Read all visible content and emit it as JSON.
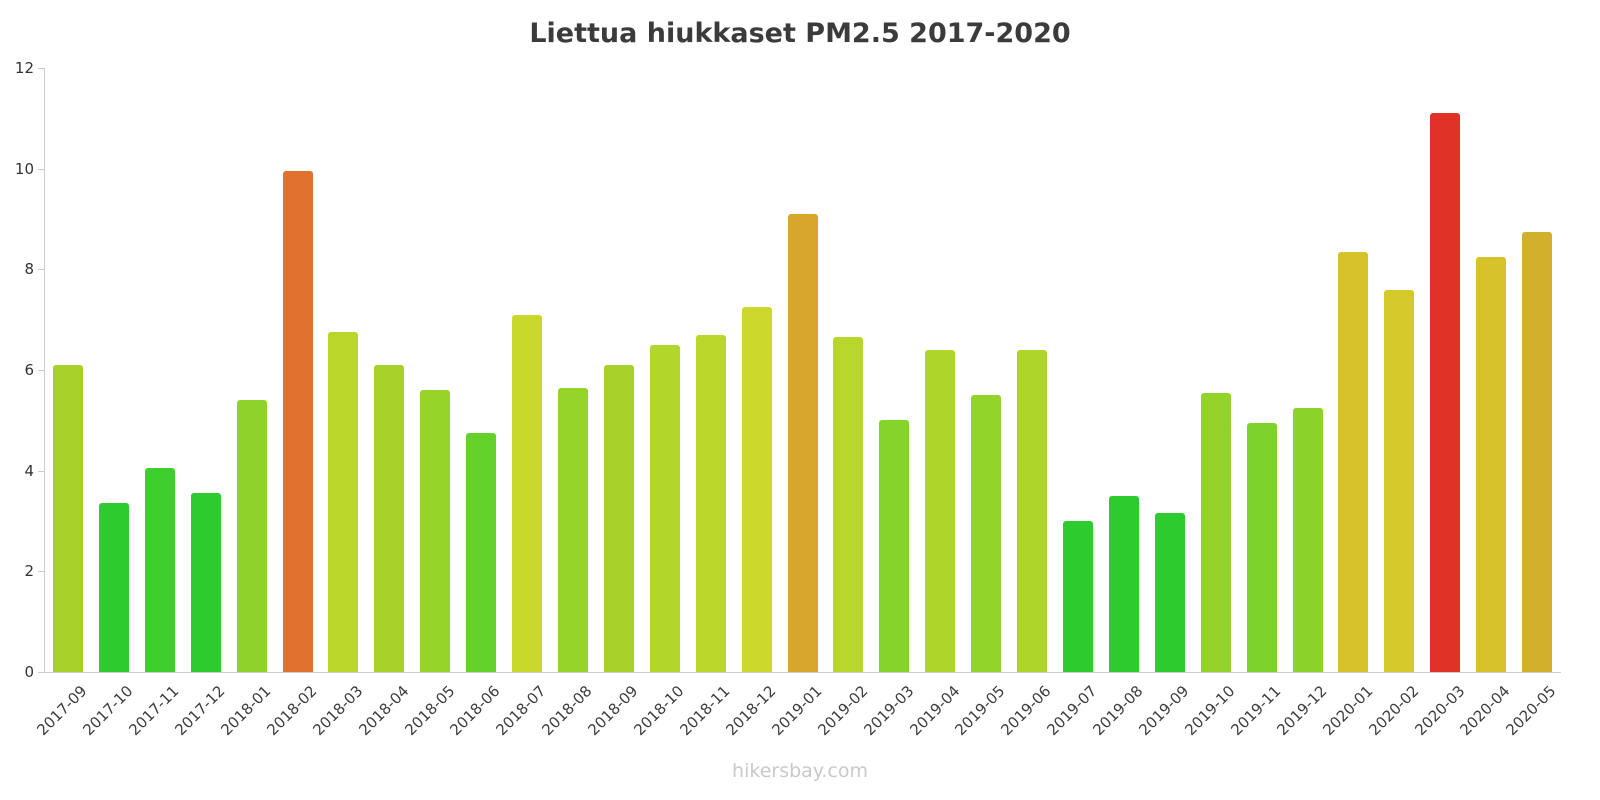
{
  "chart_data": {
    "type": "bar",
    "title": "Liettua hiukkaset PM2.5 2017-2020",
    "xlabel": "",
    "ylabel": "",
    "ylim": [
      0,
      12
    ],
    "yticks": [
      0,
      2,
      4,
      6,
      8,
      10,
      12
    ],
    "grid": false,
    "legend": false,
    "categories": [
      "2017-09",
      "2017-10",
      "2017-11",
      "2017-12",
      "2018-01",
      "2018-02",
      "2018-03",
      "2018-04",
      "2018-05",
      "2018-06",
      "2018-07",
      "2018-08",
      "2018-09",
      "2018-10",
      "2018-11",
      "2018-12",
      "2019-01",
      "2019-02",
      "2019-03",
      "2019-04",
      "2019-05",
      "2019-06",
      "2019-07",
      "2019-08",
      "2019-09",
      "2019-10",
      "2019-11",
      "2019-12",
      "2020-01",
      "2020-02",
      "2020-03",
      "2020-04",
      "2020-05"
    ],
    "values": [
      6.1,
      3.35,
      4.05,
      3.55,
      5.4,
      9.95,
      6.75,
      6.1,
      5.6,
      4.75,
      7.1,
      5.65,
      6.1,
      6.5,
      6.7,
      7.25,
      9.1,
      6.65,
      5.0,
      6.4,
      5.5,
      6.4,
      3.0,
      3.5,
      3.15,
      5.55,
      4.95,
      5.25,
      8.35,
      7.6,
      11.1,
      8.25,
      8.75
    ],
    "colors": [
      "#a6d129",
      "#2ecb2e",
      "#3ecf2e",
      "#2ecb2e",
      "#8fd32a",
      "#e0712f",
      "#bad62b",
      "#a6d129",
      "#96d42a",
      "#63d32b",
      "#c8d92c",
      "#96d42a",
      "#a6d129",
      "#b2d62a",
      "#bad62b",
      "#ccd92c",
      "#d8a62c",
      "#b8d62b",
      "#85d32b",
      "#aed52a",
      "#92d42a",
      "#aed52a",
      "#2ecb2e",
      "#2ecb2e",
      "#2ecb2e",
      "#94d42a",
      "#7dd32b",
      "#8bd32a",
      "#d6c22b",
      "#d4c82b",
      "#e03226",
      "#d6c22b",
      "#d2b02c"
    ]
  },
  "footer": {
    "watermark": "hikersbay.com"
  },
  "styles": {
    "axis_color": "#cccccc",
    "tick_label_color": "#333333",
    "title_color": "#3b3b3b",
    "watermark_color": "#c9c9c9"
  }
}
